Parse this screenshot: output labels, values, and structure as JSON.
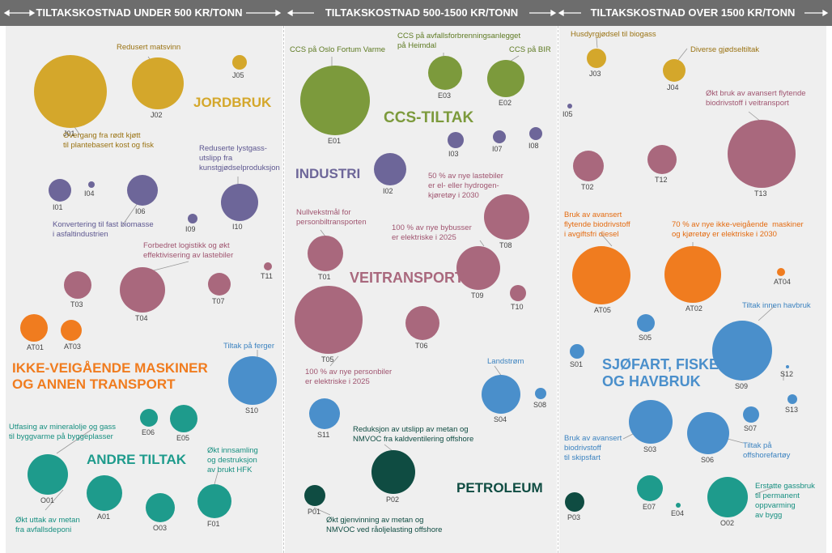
{
  "headers": [
    {
      "text": "TILTAKSKOSTNAD UNDER 500 KR/TONN"
    },
    {
      "text": "TILTAKSKOSTNAD 500-1500 KR/TONN"
    },
    {
      "text": "TILTAKSKOSTNAD OVER 1500 KR/TONN"
    }
  ],
  "colors": {
    "jordbruk": "#d4a72b",
    "ccs": "#7c9a3c",
    "industri": "#6d6699",
    "veitransport": "#a9687d",
    "ikke_veigaende": "#f07c1f",
    "sjofart": "#4a8fcb",
    "andre": "#1e9b8c",
    "petroleum": "#0f4c42"
  },
  "sectors": [
    {
      "id": "jordbruk",
      "name": "JORDBRUK"
    },
    {
      "id": "ccs",
      "name": "CCS-TILTAK"
    },
    {
      "id": "industri",
      "name": "INDUSTRI"
    },
    {
      "id": "veitransport",
      "name": "VEITRANSPORT"
    },
    {
      "id": "ikke_veigaende",
      "name": "IKKE-VEIGÅENDE MASKINER\nOG ANNEN TRANSPORT"
    },
    {
      "id": "andre",
      "name": "ANDRE TILTAK"
    },
    {
      "id": "sjofart",
      "name": "SJØFART, FISKE\nOG HAVBRUK"
    },
    {
      "id": "petroleum",
      "name": "PETROLEUM"
    }
  ],
  "measures": [
    {
      "code": "J01",
      "sector": "jordbruk",
      "label": "Overgang fra rødt kjøtt\ntil plantebasert kost og fisk"
    },
    {
      "code": "J02",
      "sector": "jordbruk",
      "label": "Redusert matsvinn"
    },
    {
      "code": "J05",
      "sector": "jordbruk",
      "label": ""
    },
    {
      "code": "I01",
      "sector": "industri",
      "label": ""
    },
    {
      "code": "I04",
      "sector": "industri",
      "label": ""
    },
    {
      "code": "I06",
      "sector": "industri",
      "label": "Konvertering til fast biomasse\ni asfaltindustrien"
    },
    {
      "code": "I09",
      "sector": "industri",
      "label": ""
    },
    {
      "code": "I10",
      "sector": "industri",
      "label": "Reduserte lystgass-\nutslipp fra\nkunstgjødselproduksjon"
    },
    {
      "code": "T03",
      "sector": "veitransport",
      "label": ""
    },
    {
      "code": "T04",
      "sector": "veitransport",
      "label": "Forbedret logistikk og økt\neffektivisering av lastebiler"
    },
    {
      "code": "T07",
      "sector": "veitransport",
      "label": ""
    },
    {
      "code": "T11",
      "sector": "veitransport",
      "label": ""
    },
    {
      "code": "AT01",
      "sector": "ikke_veigaende",
      "label": ""
    },
    {
      "code": "AT03",
      "sector": "ikke_veigaende",
      "label": ""
    },
    {
      "code": "S10",
      "sector": "sjofart",
      "label": "Tiltak på ferger"
    },
    {
      "code": "E06",
      "sector": "andre",
      "label": ""
    },
    {
      "code": "E05",
      "sector": "andre",
      "label": ""
    },
    {
      "code": "O01",
      "sector": "andre",
      "label": "Utfasing av mineralolje og gass\ntil byggvarme på byggeplasser"
    },
    {
      "code": "A01",
      "sector": "andre",
      "label": "Økt uttak av metan\nfra avfallsdeponi"
    },
    {
      "code": "O03",
      "sector": "andre",
      "label": ""
    },
    {
      "code": "F01",
      "sector": "andre",
      "label": "Økt innsamling\nog destruksjon\nav brukt HFK"
    },
    {
      "code": "E01",
      "sector": "ccs",
      "label": "CCS på Oslo Fortum Varme"
    },
    {
      "code": "E03",
      "sector": "ccs",
      "label": "CCS på avfallsforbrenningsanlegget\npå Heimdal"
    },
    {
      "code": "E02",
      "sector": "ccs",
      "label": "CCS på BIR"
    },
    {
      "code": "I03",
      "sector": "industri",
      "label": ""
    },
    {
      "code": "I07",
      "sector": "industri",
      "label": ""
    },
    {
      "code": "I08",
      "sector": "industri",
      "label": ""
    },
    {
      "code": "I02",
      "sector": "industri",
      "label": ""
    },
    {
      "code": "T08",
      "sector": "veitransport",
      "label": "50 % av nye lastebiler\ner el- eller hydrogen-\nkjøretøy i 2030"
    },
    {
      "code": "T01",
      "sector": "veitransport",
      "label": "Nullvekstmål for\npersonbiltransporten"
    },
    {
      "code": "T09",
      "sector": "veitransport",
      "label": "100 % av nye bybusser\ner elektriske i 2025"
    },
    {
      "code": "T10",
      "sector": "veitransport",
      "label": ""
    },
    {
      "code": "T05",
      "sector": "veitransport",
      "label": "100 % av nye personbiler\ner elektriske i 2025"
    },
    {
      "code": "T06",
      "sector": "veitransport",
      "label": ""
    },
    {
      "code": "S04",
      "sector": "sjofart",
      "label": "Landstrøm"
    },
    {
      "code": "S08",
      "sector": "sjofart",
      "label": ""
    },
    {
      "code": "S11",
      "sector": "sjofart",
      "label": ""
    },
    {
      "code": "P02",
      "sector": "petroleum",
      "label": "Reduksjon av utslipp av metan og\nNMVOC fra kaldventilering offshore"
    },
    {
      "code": "P01",
      "sector": "petroleum",
      "label": "Økt gjenvinning av metan og\nNMVOC ved råoljelasting offshore"
    },
    {
      "code": "J03",
      "sector": "jordbruk",
      "label": "Husdyrgjødsel til biogass"
    },
    {
      "code": "J04",
      "sector": "jordbruk",
      "label": "Diverse gjødseltiltak"
    },
    {
      "code": "I05",
      "sector": "industri",
      "label": ""
    },
    {
      "code": "T13",
      "sector": "veitransport",
      "label": "Økt bruk av avansert flytende\nbiodrivstoff i veitransport"
    },
    {
      "code": "T02",
      "sector": "veitransport",
      "label": ""
    },
    {
      "code": "T12",
      "sector": "veitransport",
      "label": ""
    },
    {
      "code": "AT05",
      "sector": "ikke_veigaende",
      "label": "Bruk av avansert\nflytende biodrivstoff\ni avgiftsfri diesel"
    },
    {
      "code": "AT02",
      "sector": "ikke_veigaende",
      "label": "70 % av nye ikke-veigående  maskiner\nog kjøretøy er elektriske i 2030"
    },
    {
      "code": "AT04",
      "sector": "ikke_veigaende",
      "label": ""
    },
    {
      "code": "S05",
      "sector": "sjofart",
      "label": ""
    },
    {
      "code": "S01",
      "sector": "sjofart",
      "label": ""
    },
    {
      "code": "S09",
      "sector": "sjofart",
      "label": "Tiltak innen havbruk"
    },
    {
      "code": "S12",
      "sector": "sjofart",
      "label": ""
    },
    {
      "code": "S13",
      "sector": "sjofart",
      "label": ""
    },
    {
      "code": "S07",
      "sector": "sjofart",
      "label": ""
    },
    {
      "code": "S03",
      "sector": "sjofart",
      "label": "Bruk av avansert\nbiodrivstoff\ntil skipsfart"
    },
    {
      "code": "S06",
      "sector": "sjofart",
      "label": "Tiltak på\noffshorefartøy"
    },
    {
      "code": "P03",
      "sector": "petroleum",
      "label": ""
    },
    {
      "code": "E07",
      "sector": "andre",
      "label": ""
    },
    {
      "code": "E04",
      "sector": "andre",
      "label": ""
    },
    {
      "code": "O02",
      "sector": "andre",
      "label": "Erstatte gassbruk\ntil permanent\noppvarming\nav bygg"
    }
  ]
}
